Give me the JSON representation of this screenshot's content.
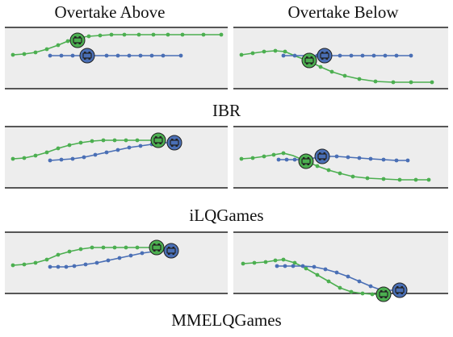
{
  "columns": [
    "Overtake Above",
    "Overtake Below"
  ],
  "rows": [
    {
      "label": "IBR"
    },
    {
      "label": "iLQGames"
    },
    {
      "label": "MMELQGames"
    }
  ],
  "colors": {
    "road_fill": "#ededed",
    "road_edge": "#222222",
    "green_vehicle": "#4caf50",
    "blue_vehicle": "#4a6fb5",
    "vehicle_outline": "#222222"
  }
}
